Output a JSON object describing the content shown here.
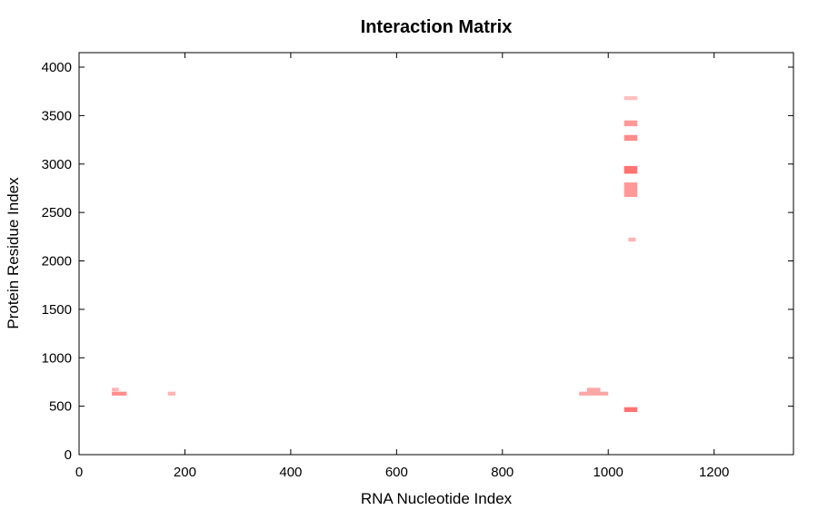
{
  "chart_data": {
    "type": "heatmap",
    "title": "Interaction Matrix",
    "xlabel": "RNA Nucleotide Index",
    "ylabel": "Protein Residue Index",
    "xlim": [
      0,
      1350
    ],
    "ylim": [
      0,
      4150
    ],
    "xticks": [
      0,
      200,
      400,
      600,
      800,
      1000,
      1200
    ],
    "yticks": [
      0,
      500,
      1000,
      1500,
      2000,
      2500,
      3000,
      3500,
      4000
    ],
    "grid": false,
    "colormap": {
      "low": "#ffffff",
      "high": "#ff0000"
    },
    "cells": [
      {
        "x": [
          62,
          75
        ],
        "y": [
          655,
          690
        ],
        "intensity": 0.3
      },
      {
        "x": [
          62,
          90
        ],
        "y": [
          610,
          650
        ],
        "intensity": 0.45
      },
      {
        "x": [
          168,
          182
        ],
        "y": [
          610,
          650
        ],
        "intensity": 0.3
      },
      {
        "x": [
          945,
          960
        ],
        "y": [
          610,
          650
        ],
        "intensity": 0.35
      },
      {
        "x": [
          960,
          985
        ],
        "y": [
          610,
          690
        ],
        "intensity": 0.35
      },
      {
        "x": [
          985,
          1000
        ],
        "y": [
          610,
          650
        ],
        "intensity": 0.35
      },
      {
        "x": [
          1030,
          1055
        ],
        "y": [
          440,
          490
        ],
        "intensity": 0.55
      },
      {
        "x": [
          1038,
          1052
        ],
        "y": [
          2200,
          2240
        ],
        "intensity": 0.3
      },
      {
        "x": [
          1030,
          1055
        ],
        "y": [
          2660,
          2810
        ],
        "intensity": 0.4
      },
      {
        "x": [
          1030,
          1055
        ],
        "y": [
          2900,
          2980
        ],
        "intensity": 0.55
      },
      {
        "x": [
          1030,
          1055
        ],
        "y": [
          3240,
          3300
        ],
        "intensity": 0.45
      },
      {
        "x": [
          1030,
          1055
        ],
        "y": [
          3390,
          3450
        ],
        "intensity": 0.4
      },
      {
        "x": [
          1030,
          1055
        ],
        "y": [
          3660,
          3700
        ],
        "intensity": 0.25
      }
    ]
  }
}
